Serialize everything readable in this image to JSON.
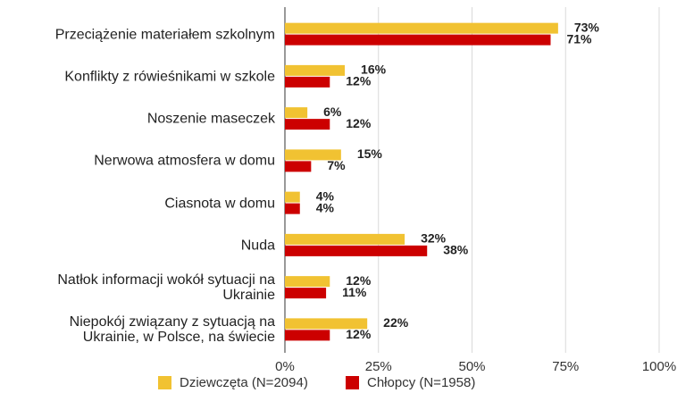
{
  "chart_data": {
    "type": "bar",
    "orientation": "horizontal",
    "categories": [
      "Przeciążenie materiałem szkolnym",
      "Konflikty z rówieśnikami w szkole",
      "Noszenie maseczek",
      "Nerwowa atmosfera w domu",
      "Ciasnota w domu",
      "Nuda",
      "Natłok informacji wokół  sytuacji na\nUkrainie",
      "Niepokój związany z  sytuacją  na\nUkrainie, w Polsce, na świecie"
    ],
    "series": [
      {
        "name": "Dziewczęta (N=2094)",
        "color": "#f1c232",
        "values": [
          73,
          16,
          6,
          15,
          4,
          32,
          12,
          22
        ],
        "value_labels": [
          "73%",
          "16%",
          "6%",
          "15%",
          "4%",
          "32%",
          "12%",
          "22%"
        ]
      },
      {
        "name": "Chłopcy (N=1958)",
        "color": "#cc0000",
        "values": [
          71,
          12,
          12,
          7,
          4,
          38,
          11,
          12
        ],
        "value_labels": [
          "71%",
          "12%",
          "12%",
          "7%",
          "4%",
          "38%",
          "11%",
          "12%"
        ]
      }
    ],
    "xlim": [
      0,
      100
    ],
    "xticks": [
      {
        "value": 0,
        "label": "0%"
      },
      {
        "value": 25,
        "label": "25%"
      },
      {
        "value": 50,
        "label": "50%"
      },
      {
        "value": 75,
        "label": "75%"
      },
      {
        "value": 100,
        "label": "100%"
      }
    ],
    "grid": true,
    "legend": "bottom"
  }
}
